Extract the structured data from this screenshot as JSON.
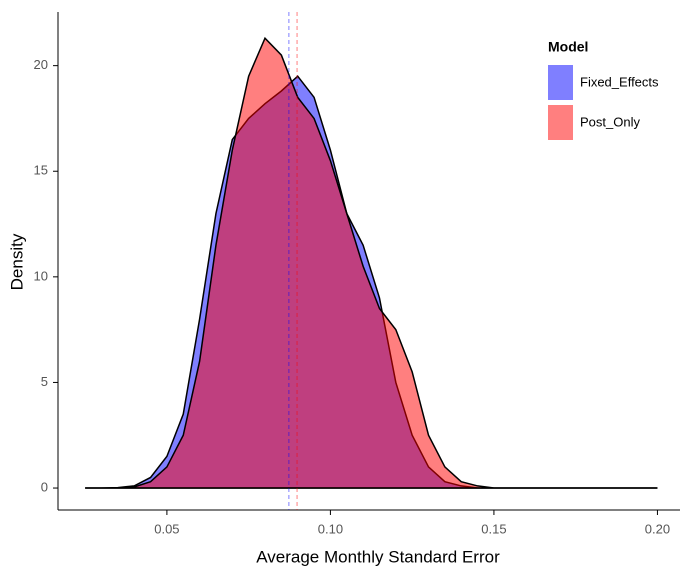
{
  "chart_data": {
    "type": "density",
    "xlabel": "Average Monthly Standard Error",
    "ylabel": "Density",
    "legend_title": "Model",
    "legend": "top-right",
    "alpha": 0.5,
    "x": [
      0.025,
      0.03,
      0.035,
      0.04,
      0.045,
      0.05,
      0.055,
      0.06,
      0.065,
      0.07,
      0.075,
      0.08,
      0.085,
      0.09,
      0.095,
      0.1,
      0.105,
      0.11,
      0.115,
      0.12,
      0.125,
      0.13,
      0.135,
      0.14,
      0.145,
      0.15,
      0.155,
      0.16,
      0.165,
      0.17,
      0.175,
      0.18,
      0.185,
      0.19,
      0.195,
      0.2
    ],
    "series": [
      {
        "name": "Fixed_Effects",
        "color": "#0000ff",
        "mean": 0.0873,
        "values": [
          0,
          0,
          0.02,
          0.1,
          0.5,
          1.5,
          3.5,
          8,
          13,
          16.5,
          17.5,
          18.2,
          18.8,
          19.5,
          18.5,
          16,
          13,
          11.5,
          9,
          5,
          2.5,
          1,
          0.3,
          0.1,
          0,
          0,
          0,
          0,
          0,
          0,
          0,
          0,
          0,
          0,
          0,
          0
        ]
      },
      {
        "name": "Post_Only",
        "color": "#ff0000",
        "mean": 0.0898,
        "values": [
          0,
          0,
          0.01,
          0.05,
          0.3,
          1,
          2.5,
          6,
          11.5,
          16,
          19.5,
          21.3,
          20.5,
          18.5,
          17.5,
          15.5,
          13,
          10.5,
          8.5,
          7.5,
          5.5,
          2.5,
          1,
          0.3,
          0.1,
          0,
          0,
          0,
          0,
          0,
          0,
          0,
          0,
          0,
          0,
          0
        ]
      }
    ],
    "xlim": [
      0.0167,
      0.2069
    ],
    "ylim": [
      -1.04,
      22.54
    ],
    "xticks": [
      0.05,
      {
        "value": 0.1,
        "label": "0.10"
      },
      0.15,
      {
        "value": 0.2,
        "label": "0.20"
      }
    ],
    "yticks": [
      0,
      5,
      10,
      15,
      20
    ],
    "grid": false
  }
}
